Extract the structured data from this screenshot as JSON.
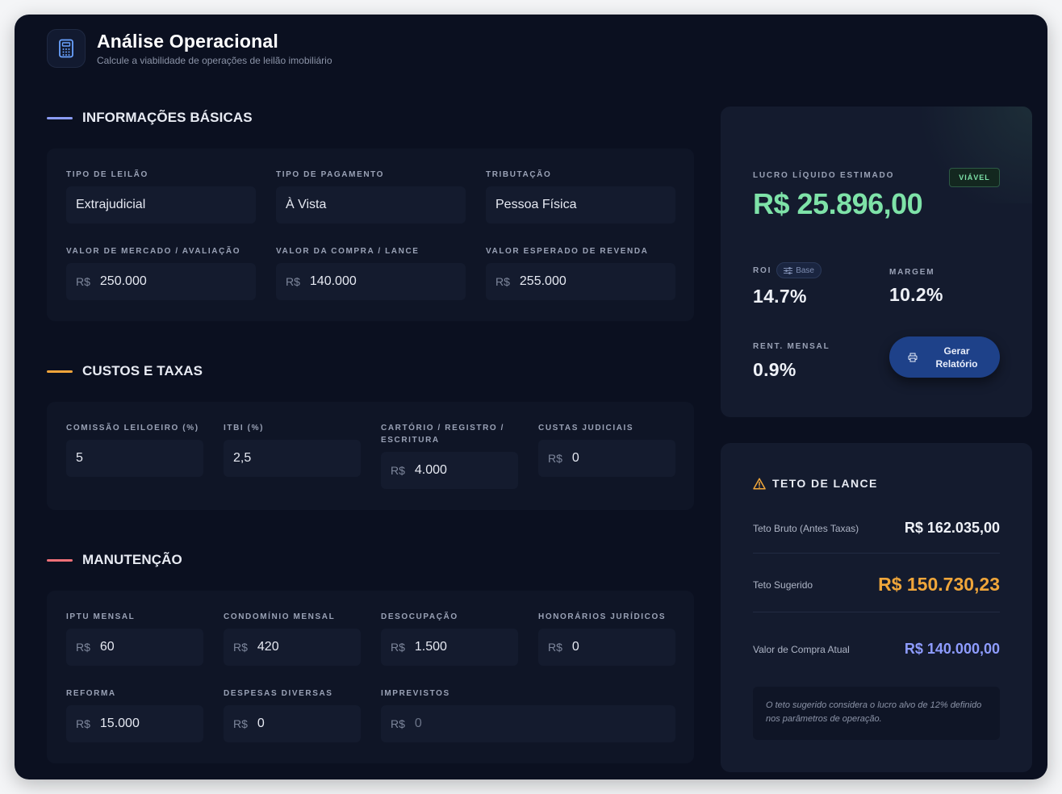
{
  "header": {
    "title": "Análise Operacional",
    "subtitle": "Calcule a viabilidade de operações de leilão imobiliário",
    "icon": "calculator-icon"
  },
  "colors": {
    "background": "#0b1020",
    "panel": "#0f1526",
    "input": "#141b2e",
    "accent_basic": "#8b9cf5",
    "accent_costs": "#f3a53b",
    "accent_maintenance": "#f07178",
    "profit_green": "#7ee2a8",
    "teto_orange": "#f0a63a",
    "compra_blue": "#8e9cff"
  },
  "sections": {
    "basic": {
      "title": "INFORMAÇÕES BÁSICAS",
      "fields": [
        {
          "label": "TIPO DE LEILÃO",
          "value": "Extrajudicial"
        },
        {
          "label": "TIPO DE PAGAMENTO",
          "value": "À Vista"
        },
        {
          "label": "TRIBUTAÇÃO",
          "value": "Pessoa Física"
        },
        {
          "label": "VALOR DE MERCADO / AVALIAÇÃO",
          "currency": "R$",
          "value": "250.000"
        },
        {
          "label": "VALOR DA COMPRA / LANCE",
          "currency": "R$",
          "value": "140.000"
        },
        {
          "label": "VALOR ESPERADO DE REVENDA",
          "currency": "R$",
          "value": "255.000"
        }
      ]
    },
    "costs": {
      "title": "CUSTOS E TAXAS",
      "fields": [
        {
          "label": "COMISSÃO LEILOEIRO (%)",
          "value": "5"
        },
        {
          "label": "ITBI (%)",
          "value": "2,5"
        },
        {
          "label_line1": "CARTÓRIO / REGISTRO /",
          "label_line2": "ESCRITURA",
          "currency": "R$",
          "value": "4.000"
        },
        {
          "label": "CUSTAS JUDICIAIS",
          "currency": "R$",
          "value": "0"
        }
      ]
    },
    "maintenance": {
      "title": "MANUTENÇÃO",
      "fields": [
        {
          "label": "IPTU MENSAL",
          "currency": "R$",
          "value": "60"
        },
        {
          "label": "CONDOMÍNIO MENSAL",
          "currency": "R$",
          "value": "420"
        },
        {
          "label": "DESOCUPAÇÃO",
          "currency": "R$",
          "value": "1.500"
        },
        {
          "label": "HONORÁRIOS JURÍDICOS",
          "currency": "R$",
          "value": "0"
        },
        {
          "label": "REFORMA",
          "currency": "R$",
          "value": "15.000"
        },
        {
          "label": "DESPESAS DIVERSAS",
          "currency": "R$",
          "value": "0"
        },
        {
          "label": "IMPREVISTOS",
          "currency": "R$",
          "value": "0"
        }
      ]
    }
  },
  "summary": {
    "profit_label": "LUCRO LÍQUIDO ESTIMADO",
    "profit_value": "R$ 25.896,00",
    "status_badge": "VIÁVEL",
    "roi_label": "ROI",
    "roi_pill": "Base",
    "roi_value": "14.7%",
    "margin_label": "MARGEM",
    "margin_value": "10.2%",
    "monthly_label": "RENT. MENSAL",
    "monthly_value": "0.9%",
    "report_button_line1": "Gerar",
    "report_button_line2": "Relatório"
  },
  "teto": {
    "title": "TETO DE LANCE",
    "bruto_label": "Teto Bruto (Antes Taxas)",
    "bruto_value": "R$ 162.035,00",
    "sugerido_label": "Teto Sugerido",
    "sugerido_value": "R$ 150.730,23",
    "compra_label": "Valor de Compra Atual",
    "compra_value": "R$ 140.000,00",
    "note": "O teto sugerido considera o lucro alvo de 12% definido nos parâmetros de operação."
  }
}
